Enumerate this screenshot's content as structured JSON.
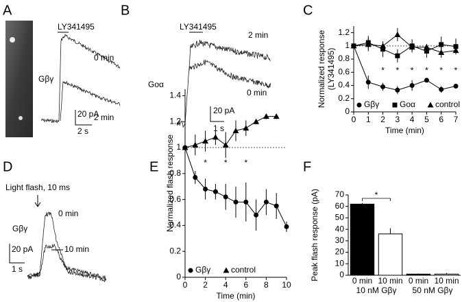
{
  "panels": {
    "letters": [
      "A",
      "B",
      "C",
      "D",
      "E",
      "F"
    ],
    "A": {
      "drug": "LY341495",
      "label": "Gβγ",
      "t0": "0 min",
      "t2": "2 min",
      "scale_y": "20 pA",
      "scale_x": "2 s"
    },
    "B": {
      "drug": "LY341495",
      "label": "Goα",
      "t2": "2 min",
      "t0": "0 min",
      "scale_y": "20 pA",
      "scale_x": "1 s"
    },
    "D": {
      "stimulus": "Light flash, 10 ms",
      "label": "Gβγ",
      "t0": "0 min",
      "t10": "10 min",
      "scale_y": "20 pA",
      "scale_x": "1 s"
    }
  },
  "chart_data": [
    {
      "type": "line",
      "xlabel": "Time (min)",
      "ylabel": [
        "Normalized response",
        "(LY341495)"
      ],
      "xlim": [
        0,
        7
      ],
      "xticks": [
        0,
        1,
        2,
        3,
        4,
        5,
        6,
        7
      ],
      "ylim": [
        0,
        1.3
      ],
      "yticks": [
        0,
        0.2,
        0.4,
        0.6,
        0.8,
        1,
        1.2
      ],
      "reference_line": 1,
      "series": [
        {
          "name": "Gβγ",
          "marker": "circle",
          "color": "#000",
          "x": [
            0,
            1,
            2,
            3,
            4,
            5,
            6,
            7
          ],
          "values": [
            1,
            0.45,
            0.38,
            0.33,
            0.4,
            0.48,
            0.34,
            0.39
          ],
          "errors": [
            0,
            0.1,
            0.06,
            0.06,
            0.08,
            0.03,
            0.05,
            0.03
          ]
        },
        {
          "name": "Goα",
          "marker": "square",
          "color": "#000",
          "x": [
            0,
            1,
            2,
            3,
            4,
            5,
            6,
            7
          ],
          "values": [
            1,
            1.05,
            0.95,
            0.85,
            1,
            0.92,
            1.02,
            0.99
          ],
          "errors": [
            0,
            0.1,
            0.12,
            0.1,
            0.1,
            0.1,
            0.12,
            0.12
          ]
        },
        {
          "name": "control",
          "marker": "triangle",
          "color": "#000",
          "x": [
            0,
            1,
            2,
            3,
            4,
            5,
            6,
            7
          ],
          "values": [
            1,
            1.02,
            1,
            1.17,
            0.98,
            0.98,
            0.9,
            0.93
          ],
          "errors": [
            0,
            0.1,
            0.05,
            0.1,
            0.05,
            0.05,
            0.08,
            0.05
          ]
        }
      ],
      "annotations": [
        {
          "text": "*",
          "x": 2,
          "y": 0.62
        },
        {
          "text": "*",
          "x": 3,
          "y": 0.62
        },
        {
          "text": "*",
          "x": 4,
          "y": 0.62
        },
        {
          "text": "*",
          "x": 5,
          "y": 0.62
        },
        {
          "text": "*",
          "x": 6,
          "y": 0.62
        },
        {
          "text": "*",
          "x": 7,
          "y": 0.62
        }
      ]
    },
    {
      "type": "line",
      "xlabel": "Time (min)",
      "ylabel": [
        "Normalized flash response"
      ],
      "xlim": [
        0,
        10
      ],
      "xticks": [
        0,
        2,
        4,
        6,
        8,
        10
      ],
      "ylim": [
        0,
        1.45
      ],
      "yticks": [
        0,
        0.2,
        0.4,
        0.6,
        0.8,
        1,
        1.2,
        1.4
      ],
      "reference_line": 1,
      "series": [
        {
          "name": "Gβγ",
          "marker": "circle",
          "color": "#000",
          "x": [
            0,
            1,
            2,
            3,
            4,
            5,
            6,
            7,
            8,
            9,
            10
          ],
          "values": [
            1,
            0.77,
            0.68,
            0.66,
            0.62,
            0.58,
            0.58,
            0.48,
            0.58,
            0.55,
            0.39
          ],
          "errors": [
            0,
            0.05,
            0.08,
            0.06,
            0.1,
            0.12,
            0.15,
            0.12,
            0.1,
            0.1,
            0.04
          ]
        },
        {
          "name": "control",
          "marker": "triangle",
          "color": "#000",
          "x": [
            0,
            1,
            2,
            3,
            4,
            5,
            6,
            7,
            8,
            9
          ],
          "values": [
            1,
            1.02,
            1.05,
            1.08,
            1.02,
            1.13,
            1.15,
            1.2,
            1.24,
            1.24
          ],
          "errors": [
            0,
            0.08,
            0.08,
            0.06,
            0.1,
            0.08,
            0.06,
            0.02,
            0.02,
            0.02
          ]
        }
      ],
      "annotations": [
        {
          "text": "*",
          "x": 2,
          "y": 0.88
        },
        {
          "text": "*",
          "x": 4,
          "y": 0.88
        },
        {
          "text": "*",
          "x": 6,
          "y": 0.88
        }
      ]
    },
    {
      "type": "bar",
      "ylabel": "Peak flash response (pA)",
      "categories": [
        "0 min",
        "10 min",
        "0 min",
        "10 min"
      ],
      "groups": [
        "10 nM Gβγ",
        "50 nM Gβγ"
      ],
      "values": [
        62,
        36,
        1,
        1
      ],
      "errors": [
        1,
        5,
        0.5,
        1
      ],
      "colors": [
        "#000",
        "#fff",
        "#000",
        "#fff"
      ],
      "ylim": [
        0,
        70
      ],
      "yticks": [
        0,
        10,
        20,
        30,
        40,
        50,
        60,
        70
      ],
      "annotations": [
        {
          "text": "*",
          "x": 0.5,
          "y": 67
        }
      ]
    }
  ]
}
